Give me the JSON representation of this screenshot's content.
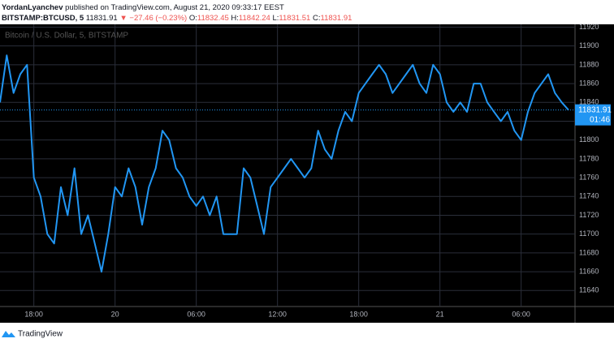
{
  "header": {
    "author": "YordanLyanchev",
    "published": "published on TradingView.com, August 21, 2020 09:33:17 EEST",
    "symbol": "BITSTAMP:BTCUSD, 5",
    "price": "11831.91",
    "change": "▼ −27.46 (−0.23%)",
    "o_label": "O:",
    "o": "11832.45",
    "h_label": "H:",
    "h": "11842.24",
    "l_label": "L:",
    "l": "11831.51",
    "c_label": "C:",
    "c": "11831.91"
  },
  "footer": {
    "brand": "TradingView"
  },
  "chart_data": {
    "type": "line",
    "title": "Bitcoin / U.S. Dollar, 5, BITSTAMP",
    "categories": [
      null,
      null,
      null,
      null,
      null,
      "18:00",
      null,
      null,
      null,
      null,
      null,
      null,
      null,
      null,
      null,
      null,
      null,
      "20",
      null,
      null,
      null,
      null,
      null,
      null,
      null,
      null,
      null,
      null,
      null,
      "06:00",
      null,
      null,
      null,
      null,
      null,
      null,
      null,
      null,
      null,
      null,
      null,
      "12:00",
      null,
      null,
      null,
      null,
      null,
      null,
      null,
      null,
      null,
      null,
      null,
      "18:00",
      null,
      null,
      null,
      null,
      null,
      null,
      null,
      null,
      null,
      null,
      null,
      "21",
      null,
      null,
      null,
      null,
      null,
      null,
      null,
      null,
      null,
      null,
      null,
      "06:00",
      null,
      null,
      null,
      null,
      null,
      null,
      null
    ],
    "series": [
      {
        "name": "BTCUSD",
        "color": "#2196f3",
        "values": [
          11840,
          11890,
          11850,
          11870,
          11880,
          11760,
          11740,
          11700,
          11690,
          11750,
          11720,
          11770,
          11700,
          11720,
          11690,
          11660,
          11700,
          11750,
          11740,
          11770,
          11750,
          11710,
          11750,
          11770,
          11810,
          11800,
          11770,
          11760,
          11740,
          11730,
          11740,
          11720,
          11740,
          11700,
          11700,
          11700,
          11770,
          11760,
          11730,
          11700,
          11750,
          11760,
          11770,
          11780,
          11770,
          11760,
          11770,
          11810,
          11790,
          11780,
          11810,
          11830,
          11820,
          11850,
          11860,
          11870,
          11880,
          11870,
          11850,
          11860,
          11870,
          11880,
          11860,
          11850,
          11880,
          11870,
          11840,
          11830,
          11840,
          11830,
          11860,
          11860,
          11840,
          11830,
          11820,
          11830,
          11810,
          11800,
          11830,
          11850,
          11860,
          11870,
          11850,
          11840,
          11831.91
        ]
      }
    ],
    "last_price": 11831.91,
    "countdown": "01:46",
    "ylim": [
      11623,
      11923
    ],
    "yticks": [
      11640,
      11660,
      11680,
      11700,
      11720,
      11740,
      11760,
      11780,
      11800,
      11820,
      11840,
      11860,
      11880,
      11900,
      11920
    ],
    "grid": true
  }
}
